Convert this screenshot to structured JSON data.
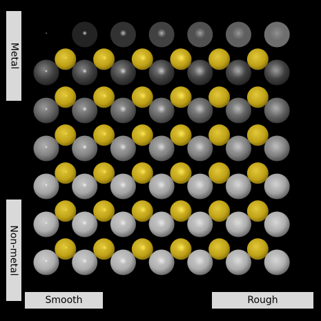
{
  "labels": {
    "metal": "Metal",
    "non_metal": "Non-metal",
    "smooth": "Smooth",
    "rough": "Rough"
  },
  "colors": {
    "background": "#000000",
    "label_background": "#d9d9d9",
    "gold": "#c9ae1c",
    "silver": "#a9a9a9",
    "dark_metal": "#222222"
  },
  "scene": {
    "metalness_levels": 7,
    "roughness_levels": 7,
    "back_layer": "gold spheres",
    "front_layer": "grey spheres"
  }
}
